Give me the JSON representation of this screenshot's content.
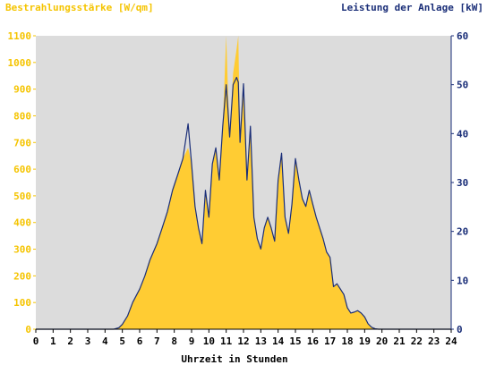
{
  "chart_data": {
    "type": "area",
    "ylabel_left": "Bestrahlungsstärke [W/qm]",
    "ylabel_right": "Leistung der Anlage [kW]",
    "xlabel": "Uhrzeit in Stunden",
    "xlim": [
      0,
      24
    ],
    "ylim_left": [
      0,
      1100
    ],
    "ylim_right": [
      0,
      60
    ],
    "x_ticks": [
      "0",
      "1",
      "2",
      "3",
      "4",
      "5",
      "6",
      "7",
      "8",
      "9",
      "10",
      "11",
      "12",
      "13",
      "14",
      "15",
      "16",
      "17",
      "18",
      "19",
      "20",
      "21",
      "22",
      "23",
      "24"
    ],
    "y_left_ticks": [
      "0",
      "100",
      "200",
      "300",
      "400",
      "500",
      "600",
      "700",
      "800",
      "900",
      "1000",
      "1100"
    ],
    "y_right_ticks": [
      "0",
      "10",
      "20",
      "30",
      "40",
      "50",
      "60"
    ],
    "grid": false,
    "colors": {
      "irradiance": "#ffcc33",
      "power": "#1a2e78",
      "plot_background": "#dcdcdc"
    },
    "series": [
      {
        "axis": "left",
        "style": "area",
        "x": [
          0,
          4.5,
          4.8,
          5.0,
          5.3,
          5.6,
          6.0,
          6.3,
          6.6,
          7.0,
          7.3,
          7.6,
          7.9,
          8.2,
          8.5,
          8.8,
          9.0,
          9.2,
          9.4,
          9.6,
          9.8,
          10.0,
          10.2,
          10.4,
          10.6,
          10.8,
          11.0,
          11.1,
          11.2,
          11.4,
          11.6,
          11.7,
          11.8,
          12.0,
          12.2,
          12.4,
          12.6,
          12.8,
          13.0,
          13.2,
          13.4,
          13.6,
          13.8,
          14.0,
          14.2,
          14.4,
          14.6,
          14.8,
          15.0,
          15.2,
          15.4,
          15.6,
          15.8,
          16.0,
          16.2,
          16.4,
          16.6,
          16.8,
          17.0,
          17.2,
          17.4,
          17.6,
          17.8,
          18.0,
          18.2,
          18.4,
          18.6,
          18.8,
          19.0,
          19.2,
          19.4,
          19.6,
          19.8,
          20.0,
          24
        ],
        "y": [
          0,
          0,
          5,
          20,
          50,
          100,
          150,
          200,
          260,
          320,
          380,
          440,
          520,
          580,
          640,
          680,
          620,
          460,
          380,
          320,
          520,
          420,
          620,
          680,
          560,
          760,
          1100,
          900,
          720,
          960,
          1050,
          1100,
          700,
          920,
          560,
          760,
          420,
          340,
          300,
          380,
          420,
          380,
          330,
          560,
          660,
          420,
          360,
          470,
          640,
          560,
          490,
          460,
          520,
          470,
          420,
          380,
          340,
          290,
          270,
          160,
          170,
          150,
          130,
          80,
          60,
          65,
          70,
          60,
          45,
          20,
          8,
          2,
          0,
          0,
          0
        ]
      },
      {
        "axis": "right",
        "style": "line",
        "x": [
          0,
          4.5,
          4.8,
          5.0,
          5.3,
          5.6,
          6.0,
          6.3,
          6.6,
          7.0,
          7.3,
          7.6,
          7.9,
          8.2,
          8.5,
          8.8,
          9.0,
          9.2,
          9.4,
          9.6,
          9.8,
          10.0,
          10.2,
          10.4,
          10.6,
          10.8,
          11.0,
          11.1,
          11.2,
          11.4,
          11.6,
          11.7,
          11.8,
          12.0,
          12.2,
          12.4,
          12.6,
          12.8,
          13.0,
          13.2,
          13.4,
          13.6,
          13.8,
          14.0,
          14.2,
          14.4,
          14.6,
          14.8,
          15.0,
          15.2,
          15.4,
          15.6,
          15.8,
          16.0,
          16.2,
          16.4,
          16.6,
          16.8,
          17.0,
          17.2,
          17.4,
          17.6,
          17.8,
          18.0,
          18.2,
          18.4,
          18.6,
          18.8,
          19.0,
          19.2,
          19.4,
          19.6,
          19.8,
          20.0,
          24
        ],
        "y": [
          0,
          0,
          0.3,
          1.0,
          2.7,
          5.5,
          8.2,
          10.9,
          14.2,
          17.5,
          20.7,
          24.0,
          28.4,
          31.6,
          34.9,
          42.0,
          33.8,
          25.1,
          20.7,
          17.5,
          28.4,
          22.9,
          33.8,
          37.1,
          30.5,
          41.5,
          50.0,
          45.0,
          39.3,
          50.0,
          51.5,
          50.5,
          38.2,
          50.2,
          30.5,
          41.5,
          22.9,
          18.5,
          16.4,
          20.7,
          22.9,
          20.7,
          18.0,
          30.5,
          36.0,
          22.9,
          19.6,
          25.6,
          34.9,
          30.5,
          26.7,
          25.1,
          28.4,
          25.6,
          22.9,
          20.7,
          18.5,
          15.8,
          14.7,
          8.7,
          9.3,
          8.2,
          7.1,
          4.4,
          3.3,
          3.5,
          3.8,
          3.3,
          2.5,
          1.1,
          0.4,
          0.1,
          0,
          0,
          0
        ]
      }
    ]
  }
}
